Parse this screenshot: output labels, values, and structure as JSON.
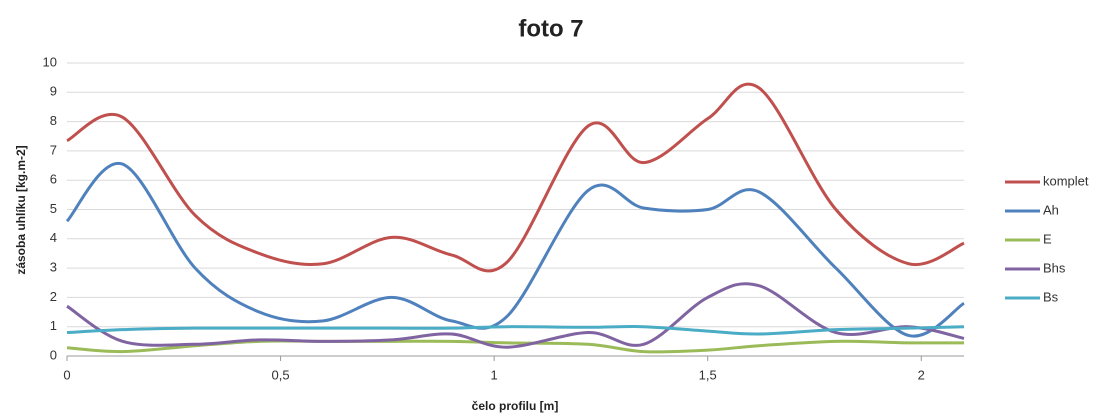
{
  "chart_data": {
    "type": "line",
    "title": "foto 7",
    "x_label": "čelo profilu [m]",
    "y_label": "zásoba uhlíku [kg.m-2]",
    "x": [
      0,
      0.13,
      0.3,
      0.45,
      0.6,
      0.76,
      0.9,
      1.03,
      1.22,
      1.35,
      1.5,
      1.62,
      1.8,
      1.97,
      2.1
    ],
    "series": [
      {
        "name": "komplet",
        "color": "#c0504d",
        "values": [
          7.35,
          8.15,
          4.8,
          3.5,
          3.15,
          4.05,
          3.45,
          3.2,
          7.85,
          6.6,
          8.1,
          9.15,
          5.0,
          3.15,
          3.85
        ]
      },
      {
        "name": "Ah",
        "color": "#4f81bd",
        "values": [
          4.6,
          6.55,
          3.0,
          1.5,
          1.2,
          2.0,
          1.2,
          1.35,
          5.65,
          5.05,
          5.0,
          5.6,
          3.0,
          0.7,
          1.8
        ]
      },
      {
        "name": "E",
        "color": "#9bbb59",
        "values": [
          0.28,
          0.15,
          0.35,
          0.5,
          0.5,
          0.5,
          0.5,
          0.45,
          0.4,
          0.15,
          0.2,
          0.35,
          0.5,
          0.45,
          0.45
        ]
      },
      {
        "name": "Bhs",
        "color": "#8064a2",
        "values": [
          1.7,
          0.5,
          0.4,
          0.55,
          0.5,
          0.55,
          0.75,
          0.3,
          0.8,
          0.4,
          2.0,
          2.4,
          0.8,
          1.0,
          0.6
        ]
      },
      {
        "name": "Bs",
        "color": "#4bacc6",
        "values": [
          0.8,
          0.9,
          0.95,
          0.95,
          0.95,
          0.95,
          0.95,
          1.0,
          0.98,
          1.0,
          0.85,
          0.75,
          0.9,
          0.95,
          1.0
        ]
      }
    ],
    "xlim": [
      0,
      2.1
    ],
    "xticks": [
      0,
      {
        "value": 0.5,
        "label": "0,5"
      },
      1,
      {
        "value": 1.5,
        "label": "1,5"
      },
      2
    ],
    "ylim": [
      0,
      10
    ],
    "yticks": [
      0,
      1,
      2,
      3,
      4,
      5,
      6,
      7,
      8,
      9,
      10
    ],
    "grid": true,
    "legend": "right"
  }
}
